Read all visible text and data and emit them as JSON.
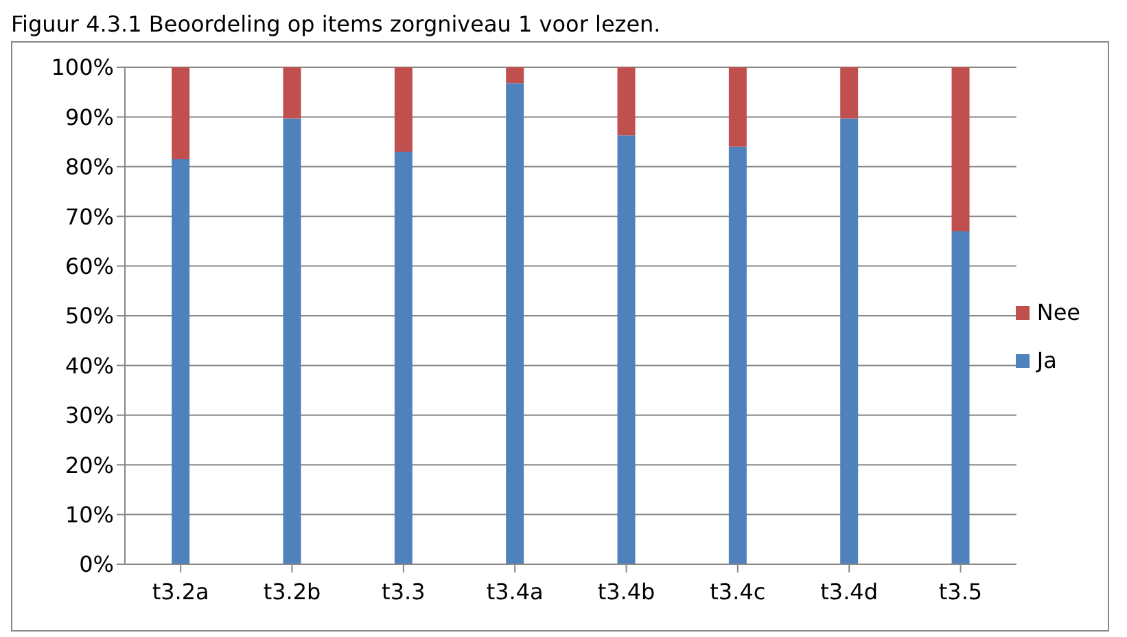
{
  "chart_data": {
    "type": "bar",
    "title": "Figuur 4.3.1 Beoordeling op items zorgniveau 1 voor lezen.",
    "categories": [
      "t3.2a",
      "t3.2b",
      "t3.3",
      "t3.4a",
      "t3.4b",
      "t3.4c",
      "t3.4d",
      "t3.5"
    ],
    "series": [
      {
        "name": "Ja",
        "color": "#4f81bd",
        "values": [
          81.5,
          89.7,
          83,
          96.8,
          86.3,
          84,
          89.7,
          67
        ]
      },
      {
        "name": "Nee",
        "color": "#c0504d",
        "values": [
          18.5,
          10.3,
          17,
          3.2,
          13.7,
          16,
          10.3,
          33
        ]
      }
    ],
    "stacked": true,
    "ylim": [
      0,
      100
    ],
    "yticks": [
      {
        "value": 0,
        "label": "0%"
      },
      {
        "value": 10,
        "label": "10%"
      },
      {
        "value": 20,
        "label": "20%"
      },
      {
        "value": 30,
        "label": "30%"
      },
      {
        "value": 40,
        "label": "40%"
      },
      {
        "value": 50,
        "label": "50%"
      },
      {
        "value": 60,
        "label": "60%"
      },
      {
        "value": 70,
        "label": "70%"
      },
      {
        "value": 80,
        "label": "80%"
      },
      {
        "value": 90,
        "label": "90%"
      },
      {
        "value": 100,
        "label": "100%"
      }
    ],
    "grid": "y",
    "legend": "right"
  }
}
